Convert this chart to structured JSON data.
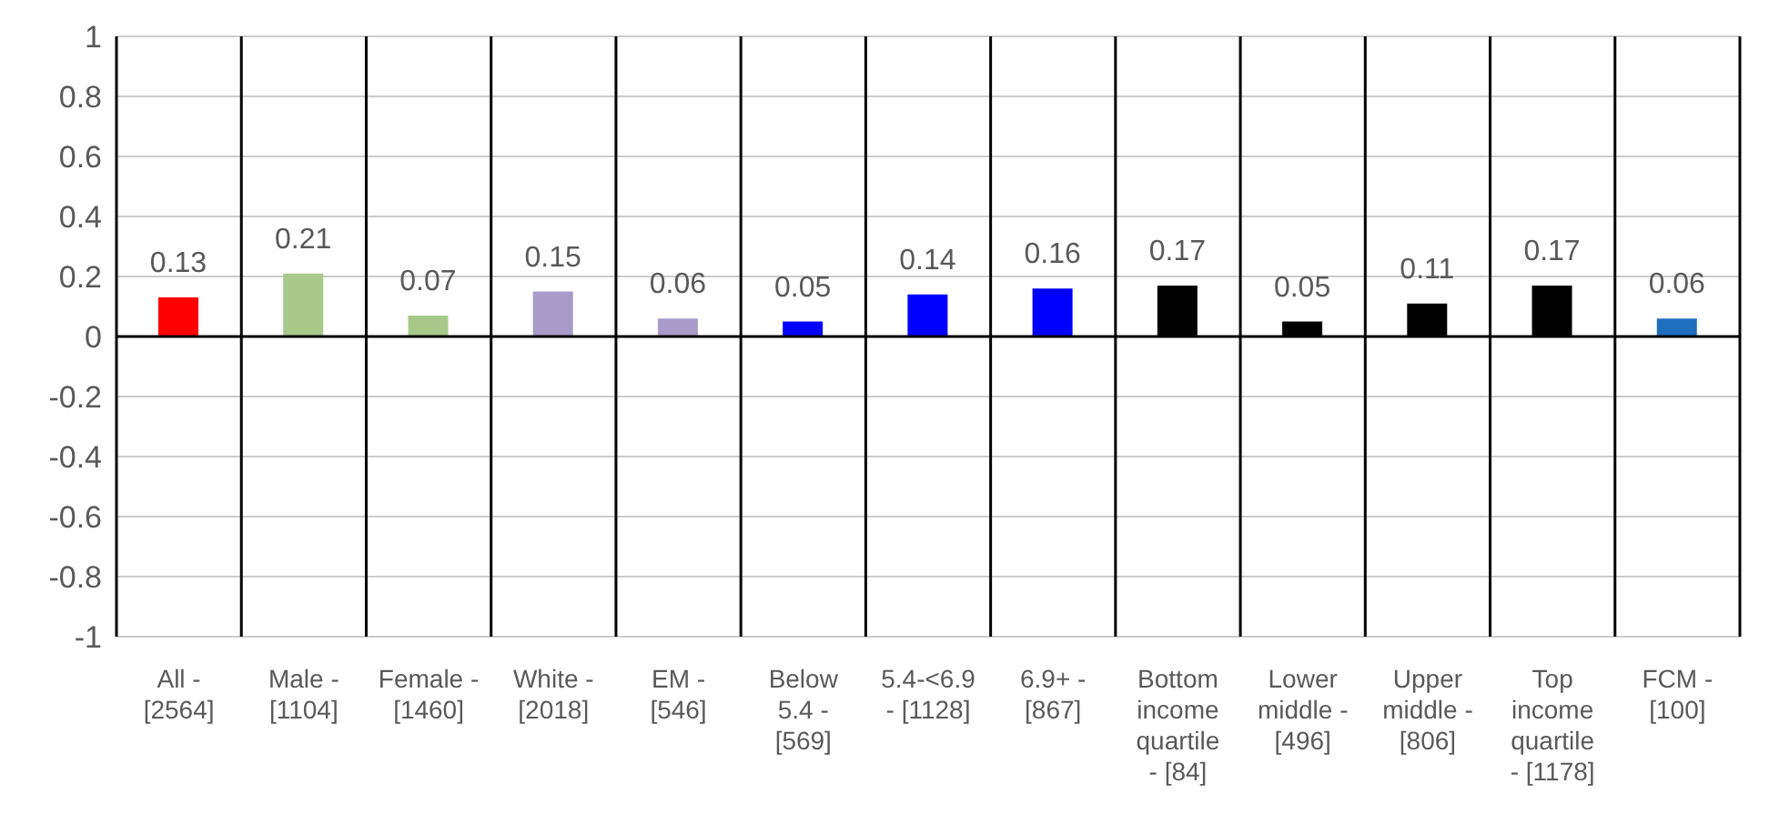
{
  "chart_data": {
    "type": "bar",
    "categories": [
      "All - [2564]",
      "Male - [1104]",
      "Female - [1460]",
      "White - [2018]",
      "EM - [546]",
      "Below 5.4 - [569]",
      "5.4-<6.9 - [1128]",
      "6.9+ - [867]",
      "Bottom income quartile - [84]",
      "Lower middle - [496]",
      "Upper middle - [806]",
      "Top income quartile - [1178]",
      "FCM - [100]"
    ],
    "values": [
      0.13,
      0.21,
      0.07,
      0.15,
      0.06,
      0.05,
      0.14,
      0.16,
      0.17,
      0.05,
      0.11,
      0.17,
      0.06
    ],
    "colors": [
      "#ff0000",
      "#a9c98a",
      "#a9c98a",
      "#a89bc9",
      "#a89bc9",
      "#0000ff",
      "#0000ff",
      "#0000ff",
      "#000000",
      "#000000",
      "#000000",
      "#000000",
      "#1f6fbf"
    ],
    "ylim": [
      -1,
      1
    ],
    "yticks": [
      -1,
      -0.8,
      -0.6,
      -0.4,
      -0.2,
      0,
      0.2,
      0.4,
      0.6,
      0.8,
      1
    ],
    "grid": true,
    "data_labels": true
  }
}
